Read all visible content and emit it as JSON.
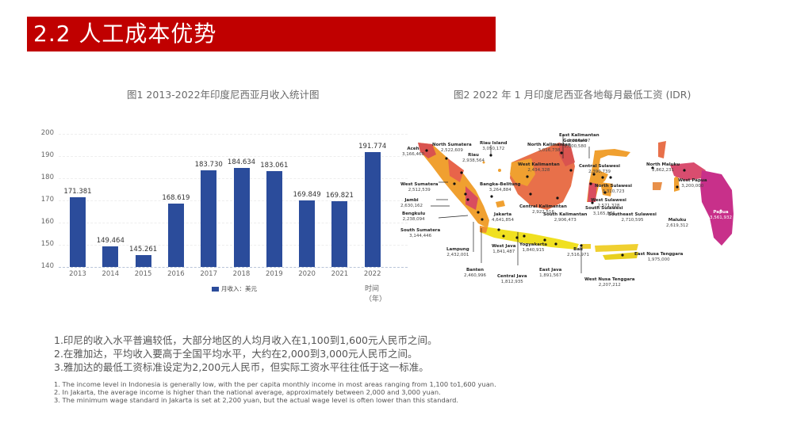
{
  "header": {
    "title": "2.2 人工成本优势",
    "bar_color": "#c00000"
  },
  "figure1": {
    "caption": "图1 2013-2022年印度尼西亚月收入统计图",
    "legend_label": "月收入：美元",
    "x_axis_title": "时间（年）"
  },
  "chart_data": {
    "type": "bar",
    "title": "图1 2013-2022年印度尼西亚月收入统计图",
    "xlabel": "时间（年）",
    "ylabel": "",
    "categories": [
      "2013",
      "2014",
      "2015",
      "2016",
      "2017",
      "2018",
      "2019",
      "2020",
      "2021",
      "2022"
    ],
    "series": [
      {
        "name": "月收入：美元",
        "color": "#2b4c9b",
        "values": [
          171.381,
          149.464,
          145.261,
          168.619,
          183.73,
          184.634,
          183.061,
          169.849,
          169.821,
          191.774
        ]
      }
    ],
    "value_labels": [
      "171.381",
      "149.464",
      "145.261",
      "168.619",
      "183.730",
      "184.634",
      "183.061",
      "169.849",
      "169.821",
      "191.774"
    ],
    "yticks": [
      "200",
      "190",
      "180",
      "170",
      "160",
      "150",
      "140"
    ],
    "ylim": [
      140,
      200
    ],
    "grid": true,
    "legend_position": "bottom"
  },
  "figure2": {
    "caption": "图2 2022 年 1 月印度尼西亚各地每月最低工资 (IDR)",
    "regions": [
      {
        "name": "Aceh",
        "value": "3,166,460"
      },
      {
        "name": "North Sumatera",
        "value": "2,522,609"
      },
      {
        "name": "Riau Island",
        "value": "3,050,172"
      },
      {
        "name": "Riau",
        "value": "2,938,564"
      },
      {
        "name": "West Sumatera",
        "value": "2,512,539"
      },
      {
        "name": "Jambi",
        "value": "2,630,162"
      },
      {
        "name": "Bengkulu",
        "value": "2,238,094"
      },
      {
        "name": "South Sumatera",
        "value": "3,144,446"
      },
      {
        "name": "Bangka-Belitung",
        "value": "3,264,884"
      },
      {
        "name": "Lampung",
        "value": "2,432,001"
      },
      {
        "name": "Banten",
        "value": "2,460,996"
      },
      {
        "name": "Jakarta",
        "value": "4,641,854"
      },
      {
        "name": "West Java",
        "value": "1,841,487"
      },
      {
        "name": "Central Java",
        "value": "1,812,935"
      },
      {
        "name": "Yogyakarta",
        "value": "1,840,915"
      },
      {
        "name": "East Java",
        "value": "1,891,567"
      },
      {
        "name": "Bali",
        "value": "2,516,971"
      },
      {
        "name": "West Kalimantan",
        "value": "2,434,328"
      },
      {
        "name": "North Kalimantan",
        "value": "3,016,738"
      },
      {
        "name": "East Kalimantan",
        "value": "3,014,497"
      },
      {
        "name": "Central Kalimantan",
        "value": "2,922,516"
      },
      {
        "name": "South Kalimantan",
        "value": "2,906,473"
      },
      {
        "name": "Gorontalo",
        "value": "2,800,580"
      },
      {
        "name": "Central Sulawesi",
        "value": "2,390,739"
      },
      {
        "name": "North Sulawesi",
        "value": "3,310,723"
      },
      {
        "name": "West Sulawesi",
        "value": "2,571,328"
      },
      {
        "name": "South Sulawesi",
        "value": "3,165,876"
      },
      {
        "name": "Southeast Sulawesi",
        "value": "2,710,595"
      },
      {
        "name": "North Maluku",
        "value": "2,862,231"
      },
      {
        "name": "Maluku",
        "value": "2,619,312"
      },
      {
        "name": "West Papua",
        "value": "3,200,000"
      },
      {
        "name": "Papua",
        "value": "3,561,932"
      },
      {
        "name": "West Nusa Tenggara",
        "value": "2,207,212"
      },
      {
        "name": "East Nusa Tenggara",
        "value": "1,975,000"
      }
    ]
  },
  "notes_zh": [
    "1.印尼的收入水平普遍较低，大部分地区的人均月收入在1,100到1,600元人民币之间。",
    "2.在雅加达，平均收入要高于全国平均水平，大约在2,000到3,000元人民币之间。",
    "3.雅加达的最低工资标准设定为2,200元人民币，但实际工资水平往往低于这一标准。"
  ],
  "notes_en": [
    "1. The income level in Indonesia is generally low, with the per capita monthly income in most areas ranging from 1,100 to1,600 yuan.",
    "2. In Jakarta, the average income is higher than the national average, approximately between 2,000 and 3,000 yuan.",
    "3. The minimum wage standard in Jakarta is set at 2,200 yuan, but the actual wage level is often lower than this standard."
  ]
}
